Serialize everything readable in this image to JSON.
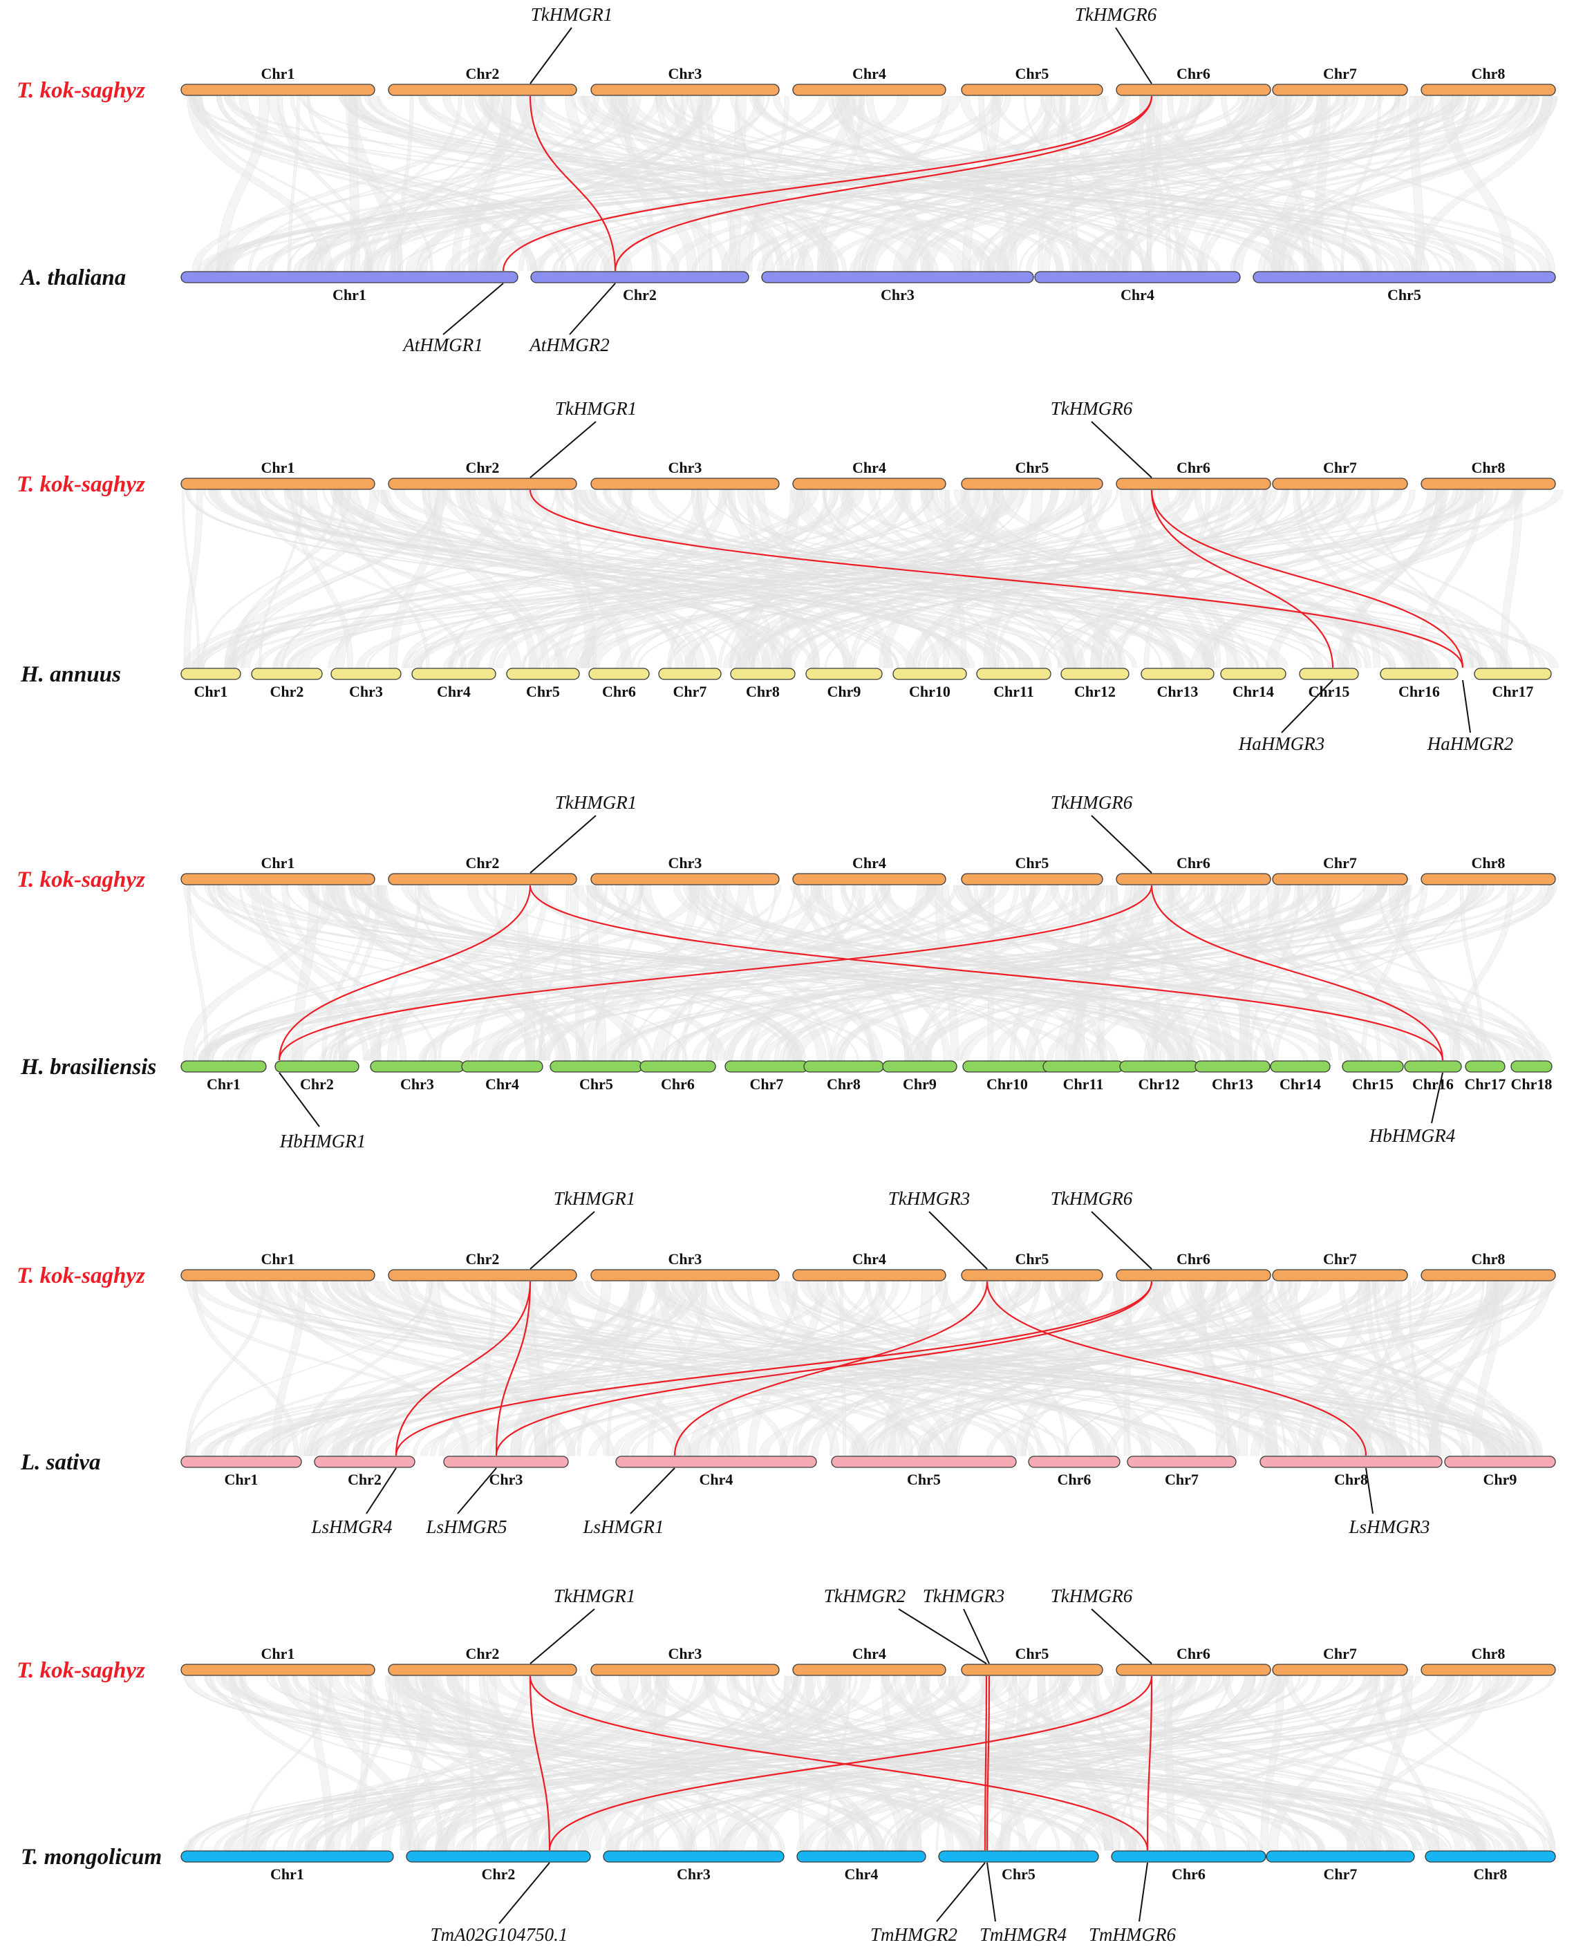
{
  "colors": {
    "top": "#f6a65c",
    "background_links": "#e6e6e6",
    "highlight_links": "#ee1c25",
    "species_top": "#ee1c25",
    "species_bottom": "#111111"
  },
  "panels": [
    {
      "top_species": "T. kok-saghyz",
      "top_chrs": [
        "Chr1",
        "Chr2",
        "Chr3",
        "Chr4",
        "Chr5",
        "Chr6",
        "Chr7",
        "Chr8"
      ],
      "top_genes": [
        "TkHMGR1",
        "TkHMGR6"
      ],
      "bottom_species": "A. thaliana",
      "bottom_color": "#8a8ff0",
      "bottom_chrs": [
        "Chr1",
        "Chr2",
        "Chr3",
        "Chr4",
        "Chr5"
      ],
      "bottom_genes": [
        "AtHMGR1",
        "AtHMGR2"
      ],
      "links": [
        [
          "TkHMGR1",
          "AtHMGR2"
        ],
        [
          "TkHMGR6",
          "AtHMGR1"
        ],
        [
          "TkHMGR6",
          "AtHMGR2"
        ]
      ]
    },
    {
      "top_species": "T. kok-saghyz",
      "top_chrs": [
        "Chr1",
        "Chr2",
        "Chr3",
        "Chr4",
        "Chr5",
        "Chr6",
        "Chr7",
        "Chr8"
      ],
      "top_genes": [
        "TkHMGR1",
        "TkHMGR6"
      ],
      "bottom_species": "H. annuus",
      "bottom_color": "#f3e88e",
      "bottom_chrs": [
        "Chr1",
        "Chr2",
        "Chr3",
        "Chr4",
        "Chr5",
        "Chr6",
        "Chr7",
        "Chr8",
        "Chr9",
        "Chr10",
        "Chr11",
        "Chr12",
        "Chr13",
        "Chr14",
        "Chr15",
        "Chr16",
        "Chr17"
      ],
      "bottom_genes": [
        "HaHMGR3",
        "HaHMGR2"
      ],
      "links": [
        [
          "TkHMGR1",
          "HaHMGR2"
        ],
        [
          "TkHMGR6",
          "HaHMGR3"
        ],
        [
          "TkHMGR6",
          "HaHMGR2"
        ]
      ]
    },
    {
      "top_species": "T. kok-saghyz",
      "top_chrs": [
        "Chr1",
        "Chr2",
        "Chr3",
        "Chr4",
        "Chr5",
        "Chr6",
        "Chr7",
        "Chr8"
      ],
      "top_genes": [
        "TkHMGR1",
        "TkHMGR6"
      ],
      "bottom_species": "H. brasiliensis",
      "bottom_color": "#8cd45e",
      "bottom_chrs": [
        "Chr1",
        "Chr2",
        "Chr3",
        "Chr4",
        "Chr5",
        "Chr6",
        "Chr7",
        "Chr8",
        "Chr9",
        "Chr10",
        "Chr11",
        "Chr12",
        "Chr13",
        "Chr14",
        "Chr15",
        "Chr16",
        "Chr17",
        "Chr18"
      ],
      "bottom_genes": [
        "HbHMGR1",
        "HbHMGR4"
      ],
      "links": [
        [
          "TkHMGR1",
          "HbHMGR1"
        ],
        [
          "TkHMGR1",
          "HbHMGR4"
        ],
        [
          "TkHMGR6",
          "HbHMGR1"
        ],
        [
          "TkHMGR6",
          "HbHMGR4"
        ]
      ]
    },
    {
      "top_species": "T. kok-saghyz",
      "top_chrs": [
        "Chr1",
        "Chr2",
        "Chr3",
        "Chr4",
        "Chr5",
        "Chr6",
        "Chr7",
        "Chr8"
      ],
      "top_genes": [
        "TkHMGR1",
        "TkHMGR3",
        "TkHMGR6"
      ],
      "bottom_species": "L. sativa",
      "bottom_color": "#f6aab4",
      "bottom_chrs": [
        "Chr1",
        "Chr2",
        "Chr3",
        "Chr4",
        "Chr5",
        "Chr6",
        "Chr7",
        "Chr8",
        "Chr9"
      ],
      "bottom_genes": [
        "LsHMGR4",
        "LsHMGR5",
        "LsHMGR1",
        "LsHMGR3"
      ],
      "links": [
        [
          "TkHMGR1",
          "LsHMGR4"
        ],
        [
          "TkHMGR1",
          "LsHMGR5"
        ],
        [
          "TkHMGR6",
          "LsHMGR4"
        ],
        [
          "TkHMGR6",
          "LsHMGR5"
        ],
        [
          "TkHMGR3",
          "LsHMGR1"
        ],
        [
          "TkHMGR3",
          "LsHMGR3"
        ]
      ]
    },
    {
      "top_species": "T. kok-saghyz",
      "top_chrs": [
        "Chr1",
        "Chr2",
        "Chr3",
        "Chr4",
        "Chr5",
        "Chr6",
        "Chr7",
        "Chr8"
      ],
      "top_genes": [
        "TkHMGR1",
        "TkHMGR2",
        "TkHMGR3",
        "TkHMGR6"
      ],
      "bottom_species": "T. mongolicum",
      "bottom_color": "#16b4f0",
      "bottom_chrs": [
        "Chr1",
        "Chr2",
        "Chr3",
        "Chr4",
        "Chr5",
        "Chr6",
        "Chr7",
        "Chr8"
      ],
      "bottom_genes": [
        "TmA02G104750.1",
        "TmHMGR2",
        "TmHMGR4",
        "TmHMGR6"
      ],
      "links": [
        [
          "TkHMGR1",
          "TmA02G104750.1"
        ],
        [
          "TkHMGR1",
          "TmHMGR6"
        ],
        [
          "TkHMGR6",
          "TmA02G104750.1"
        ],
        [
          "TkHMGR6",
          "TmHMGR6"
        ],
        [
          "TkHMGR2",
          "TmHMGR2"
        ],
        [
          "TkHMGR3",
          "TmHMGR4"
        ]
      ]
    }
  ]
}
